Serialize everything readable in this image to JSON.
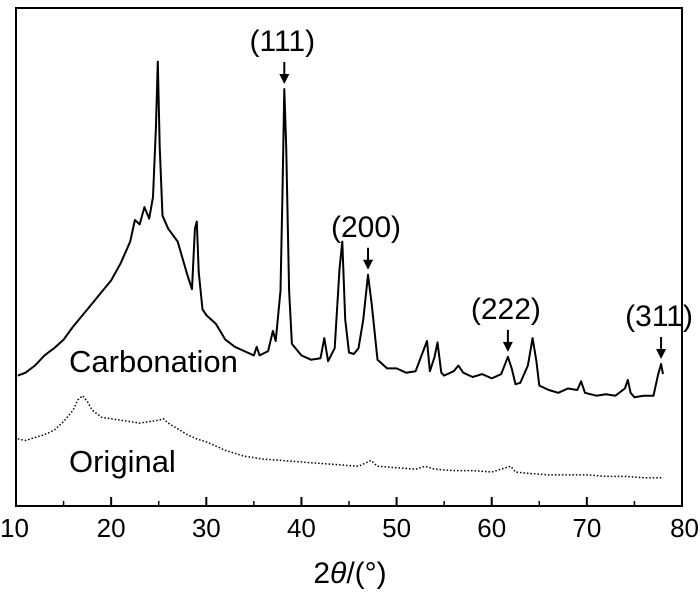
{
  "chart_data": {
    "type": "line",
    "title": "",
    "xlabel_prefix": "2",
    "xlabel_symbol": "θ",
    "xlabel_suffix": "/(°)",
    "ylabel": "",
    "xlim": [
      10,
      80
    ],
    "x_ticks": [
      "10",
      "20",
      "30",
      "40",
      "50",
      "60",
      "70",
      "80"
    ],
    "grid": false,
    "legend": "none",
    "series": [
      {
        "name": "Carbonation",
        "line_style": "solid",
        "color": "#000000",
        "points": [
          [
            10.2,
            0.2
          ],
          [
            11,
            0.6
          ],
          [
            12,
            1.6
          ],
          [
            13,
            3.0
          ],
          [
            14,
            4.0
          ],
          [
            15,
            5.2
          ],
          [
            16,
            7.0
          ],
          [
            17,
            8.6
          ],
          [
            18,
            10.2
          ],
          [
            19,
            11.8
          ],
          [
            20,
            13.4
          ],
          [
            21,
            15.8
          ],
          [
            22,
            18.8
          ],
          [
            22.5,
            21.8
          ],
          [
            23,
            21.2
          ],
          [
            23.5,
            23.6
          ],
          [
            24,
            22.0
          ],
          [
            24.4,
            25.0
          ],
          [
            24.7,
            34.6
          ],
          [
            24.9,
            43.8
          ],
          [
            25.1,
            32.0
          ],
          [
            25.4,
            22.4
          ],
          [
            26,
            20.6
          ],
          [
            27,
            18.8
          ],
          [
            28,
            14.2
          ],
          [
            28.5,
            12.2
          ],
          [
            28.8,
            20.6
          ],
          [
            29.0,
            21.6
          ],
          [
            29.2,
            14.6
          ],
          [
            29.6,
            9.4
          ],
          [
            30,
            8.6
          ],
          [
            31,
            7.4
          ],
          [
            32,
            5.2
          ],
          [
            33,
            4.2
          ],
          [
            34,
            3.6
          ],
          [
            35,
            3.0
          ],
          [
            35.3,
            4.2
          ],
          [
            35.6,
            3.0
          ],
          [
            36.5,
            3.6
          ],
          [
            37,
            6.4
          ],
          [
            37.3,
            5.0
          ],
          [
            37.8,
            12.0
          ],
          [
            38.0,
            25.0
          ],
          [
            38.2,
            40.0
          ],
          [
            38.4,
            32.0
          ],
          [
            38.7,
            12.0
          ],
          [
            39,
            4.6
          ],
          [
            40,
            3.0
          ],
          [
            41,
            2.4
          ],
          [
            42,
            2.6
          ],
          [
            42.4,
            5.4
          ],
          [
            42.8,
            2.2
          ],
          [
            43.5,
            4.0
          ],
          [
            44.0,
            15.0
          ],
          [
            44.3,
            18.8
          ],
          [
            44.6,
            8.0
          ],
          [
            45,
            3.4
          ],
          [
            45.5,
            3.2
          ],
          [
            46,
            4.0
          ],
          [
            46.5,
            8.0
          ],
          [
            47.0,
            14.2
          ],
          [
            47.4,
            10.0
          ],
          [
            48,
            2.4
          ],
          [
            49,
            1.2
          ],
          [
            50,
            1.2
          ],
          [
            51,
            0.6
          ],
          [
            52,
            0.8
          ],
          [
            52.8,
            3.6
          ],
          [
            53.2,
            5.0
          ],
          [
            53.5,
            0.8
          ],
          [
            54,
            2.8
          ],
          [
            54.3,
            4.8
          ],
          [
            54.7,
            0.6
          ],
          [
            55,
            0.2
          ],
          [
            56,
            0.8
          ],
          [
            56.5,
            1.6
          ],
          [
            57,
            0.6
          ],
          [
            58,
            0.0
          ],
          [
            59,
            0.4
          ],
          [
            60,
            -0.2
          ],
          [
            61,
            0.4
          ],
          [
            61.7,
            2.8
          ],
          [
            62.1,
            1.2
          ],
          [
            62.5,
            -1.0
          ],
          [
            63,
            -0.8
          ],
          [
            63.8,
            1.6
          ],
          [
            64.3,
            5.4
          ],
          [
            64.7,
            2.2
          ],
          [
            65,
            -1.2
          ],
          [
            66,
            -1.8
          ],
          [
            67,
            -2.2
          ],
          [
            68,
            -1.6
          ],
          [
            69,
            -1.8
          ],
          [
            69.4,
            -0.6
          ],
          [
            69.8,
            -2.2
          ],
          [
            71,
            -2.6
          ],
          [
            72,
            -2.4
          ],
          [
            73,
            -2.6
          ],
          [
            74,
            -1.6
          ],
          [
            74.3,
            -0.4
          ],
          [
            74.6,
            -2.2
          ],
          [
            75,
            -2.8
          ],
          [
            76,
            -2.6
          ],
          [
            77,
            -2.6
          ],
          [
            77.5,
            0.4
          ],
          [
            77.8,
            1.8
          ],
          [
            78.0,
            0.4
          ]
        ]
      },
      {
        "name": "Original",
        "line_style": "dotted",
        "color": "#000000",
        "points": [
          [
            10.2,
            -8.6
          ],
          [
            11,
            -8.8
          ],
          [
            12,
            -8.4
          ],
          [
            13,
            -8.0
          ],
          [
            14,
            -7.4
          ],
          [
            15,
            -6.2
          ],
          [
            16,
            -4.6
          ],
          [
            16.5,
            -3.2
          ],
          [
            17,
            -2.6
          ],
          [
            17.5,
            -3.4
          ],
          [
            18,
            -4.6
          ],
          [
            19,
            -5.6
          ],
          [
            20,
            -5.8
          ],
          [
            21,
            -6.0
          ],
          [
            22,
            -6.2
          ],
          [
            23,
            -6.4
          ],
          [
            24,
            -6.2
          ],
          [
            25,
            -6.0
          ],
          [
            25.5,
            -5.8
          ],
          [
            26,
            -6.4
          ],
          [
            27,
            -7.2
          ],
          [
            28,
            -8.0
          ],
          [
            29,
            -8.6
          ],
          [
            30,
            -9.0
          ],
          [
            31,
            -9.6
          ],
          [
            32,
            -10.2
          ],
          [
            33,
            -10.6
          ],
          [
            34,
            -11.0
          ],
          [
            35,
            -11.2
          ],
          [
            36,
            -11.4
          ],
          [
            38,
            -11.6
          ],
          [
            40,
            -11.8
          ],
          [
            42,
            -12.0
          ],
          [
            44,
            -12.2
          ],
          [
            46,
            -12.4
          ],
          [
            47.3,
            -11.6
          ],
          [
            48,
            -12.4
          ],
          [
            50,
            -12.6
          ],
          [
            52,
            -12.8
          ],
          [
            53,
            -12.4
          ],
          [
            54,
            -12.8
          ],
          [
            56,
            -13.0
          ],
          [
            58,
            -13.0
          ],
          [
            60,
            -13.2
          ],
          [
            62,
            -12.4
          ],
          [
            62.5,
            -13.2
          ],
          [
            64,
            -13.4
          ],
          [
            66,
            -13.6
          ],
          [
            68,
            -13.6
          ],
          [
            70,
            -13.6
          ],
          [
            72,
            -13.8
          ],
          [
            74,
            -13.8
          ],
          [
            76,
            -14.0
          ],
          [
            78,
            -14.0
          ]
        ]
      }
    ],
    "annotations": [
      {
        "label": "(111)",
        "x": 38.2,
        "y": 40.0
      },
      {
        "label": "(200)",
        "x": 47.0,
        "y": 14.2
      },
      {
        "label": "(222)",
        "x": 61.7,
        "y": 2.8
      },
      {
        "label": "(311)",
        "x": 77.8,
        "y": 1.8
      }
    ]
  }
}
